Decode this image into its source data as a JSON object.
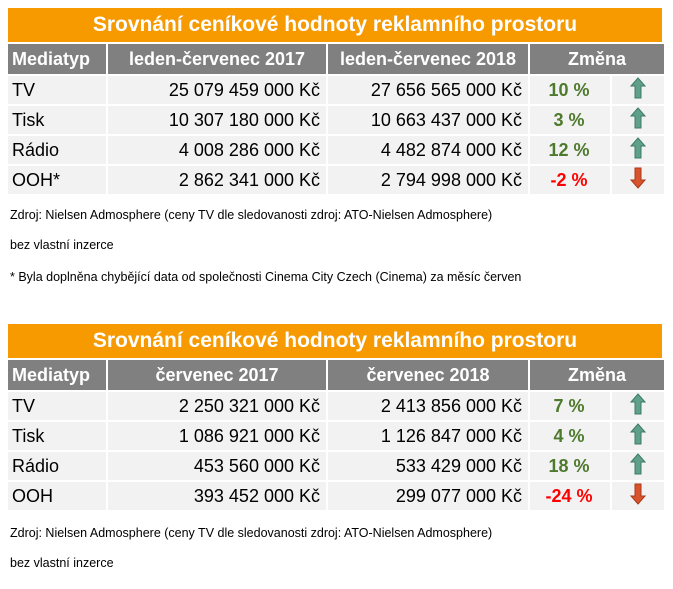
{
  "colors": {
    "title_bg": "#F79A00",
    "header_bg": "#808080",
    "row_bg": "#F2F2F2",
    "positive": "#4E7A2E",
    "negative": "#FF0000",
    "arrow_up": "#5FA08A",
    "arrow_down": "#D9532C"
  },
  "tables": [
    {
      "title": "Srovnání ceníkové hodnoty reklamního prostoru",
      "headers": [
        "Mediatyp",
        "leden-červenec 2017",
        "leden-červenec 2018",
        "Změna"
      ],
      "rows": [
        {
          "media": "TV",
          "v2017": "25 079 459 000 Kč",
          "v2018": "27 656 565 000 Kč",
          "change": "10 %",
          "trend": "up"
        },
        {
          "media": "Tisk",
          "v2017": "10 307 180 000 Kč",
          "v2018": "10 663 437 000 Kč",
          "change": "3 %",
          "trend": "up"
        },
        {
          "media": "Rádio",
          "v2017": "4 008 286 000 Kč",
          "v2018": "4 482 874 000 Kč",
          "change": "12 %",
          "trend": "up"
        },
        {
          "media": "OOH*",
          "v2017": "2 862 341 000 Kč",
          "v2018": "2 794 998 000 Kč",
          "change": "-2 %",
          "trend": "down"
        }
      ],
      "notes": [
        "Zdroj: Nielsen Admosphere (ceny TV dle sledovanosti zdroj: ATO-Nielsen Admosphere)",
        "bez vlastní inzerce",
        "*  Byla doplněna chybějící data od společnosti Cinema City Czech (Cinema) za měsíc červen"
      ]
    },
    {
      "title": "Srovnání ceníkové hodnoty reklamního prostoru",
      "headers": [
        "Mediatyp",
        "červenec 2017",
        "červenec 2018",
        "Změna"
      ],
      "rows": [
        {
          "media": "TV",
          "v2017": "2 250 321 000 Kč",
          "v2018": "2 413 856 000 Kč",
          "change": "7 %",
          "trend": "up"
        },
        {
          "media": "Tisk",
          "v2017": "1 086 921 000 Kč",
          "v2018": "1 126 847 000 Kč",
          "change": "4 %",
          "trend": "up"
        },
        {
          "media": "Rádio",
          "v2017": "453 560 000 Kč",
          "v2018": "533 429 000 Kč",
          "change": "18 %",
          "trend": "up"
        },
        {
          "media": "OOH",
          "v2017": "393 452 000 Kč",
          "v2018": "299 077 000 Kč",
          "change": "-24 %",
          "trend": "down"
        }
      ],
      "notes": [
        "Zdroj: Nielsen Admosphere (ceny TV dle sledovanosti zdroj: ATO-Nielsen Admosphere)",
        "bez vlastní inzerce"
      ]
    }
  ]
}
